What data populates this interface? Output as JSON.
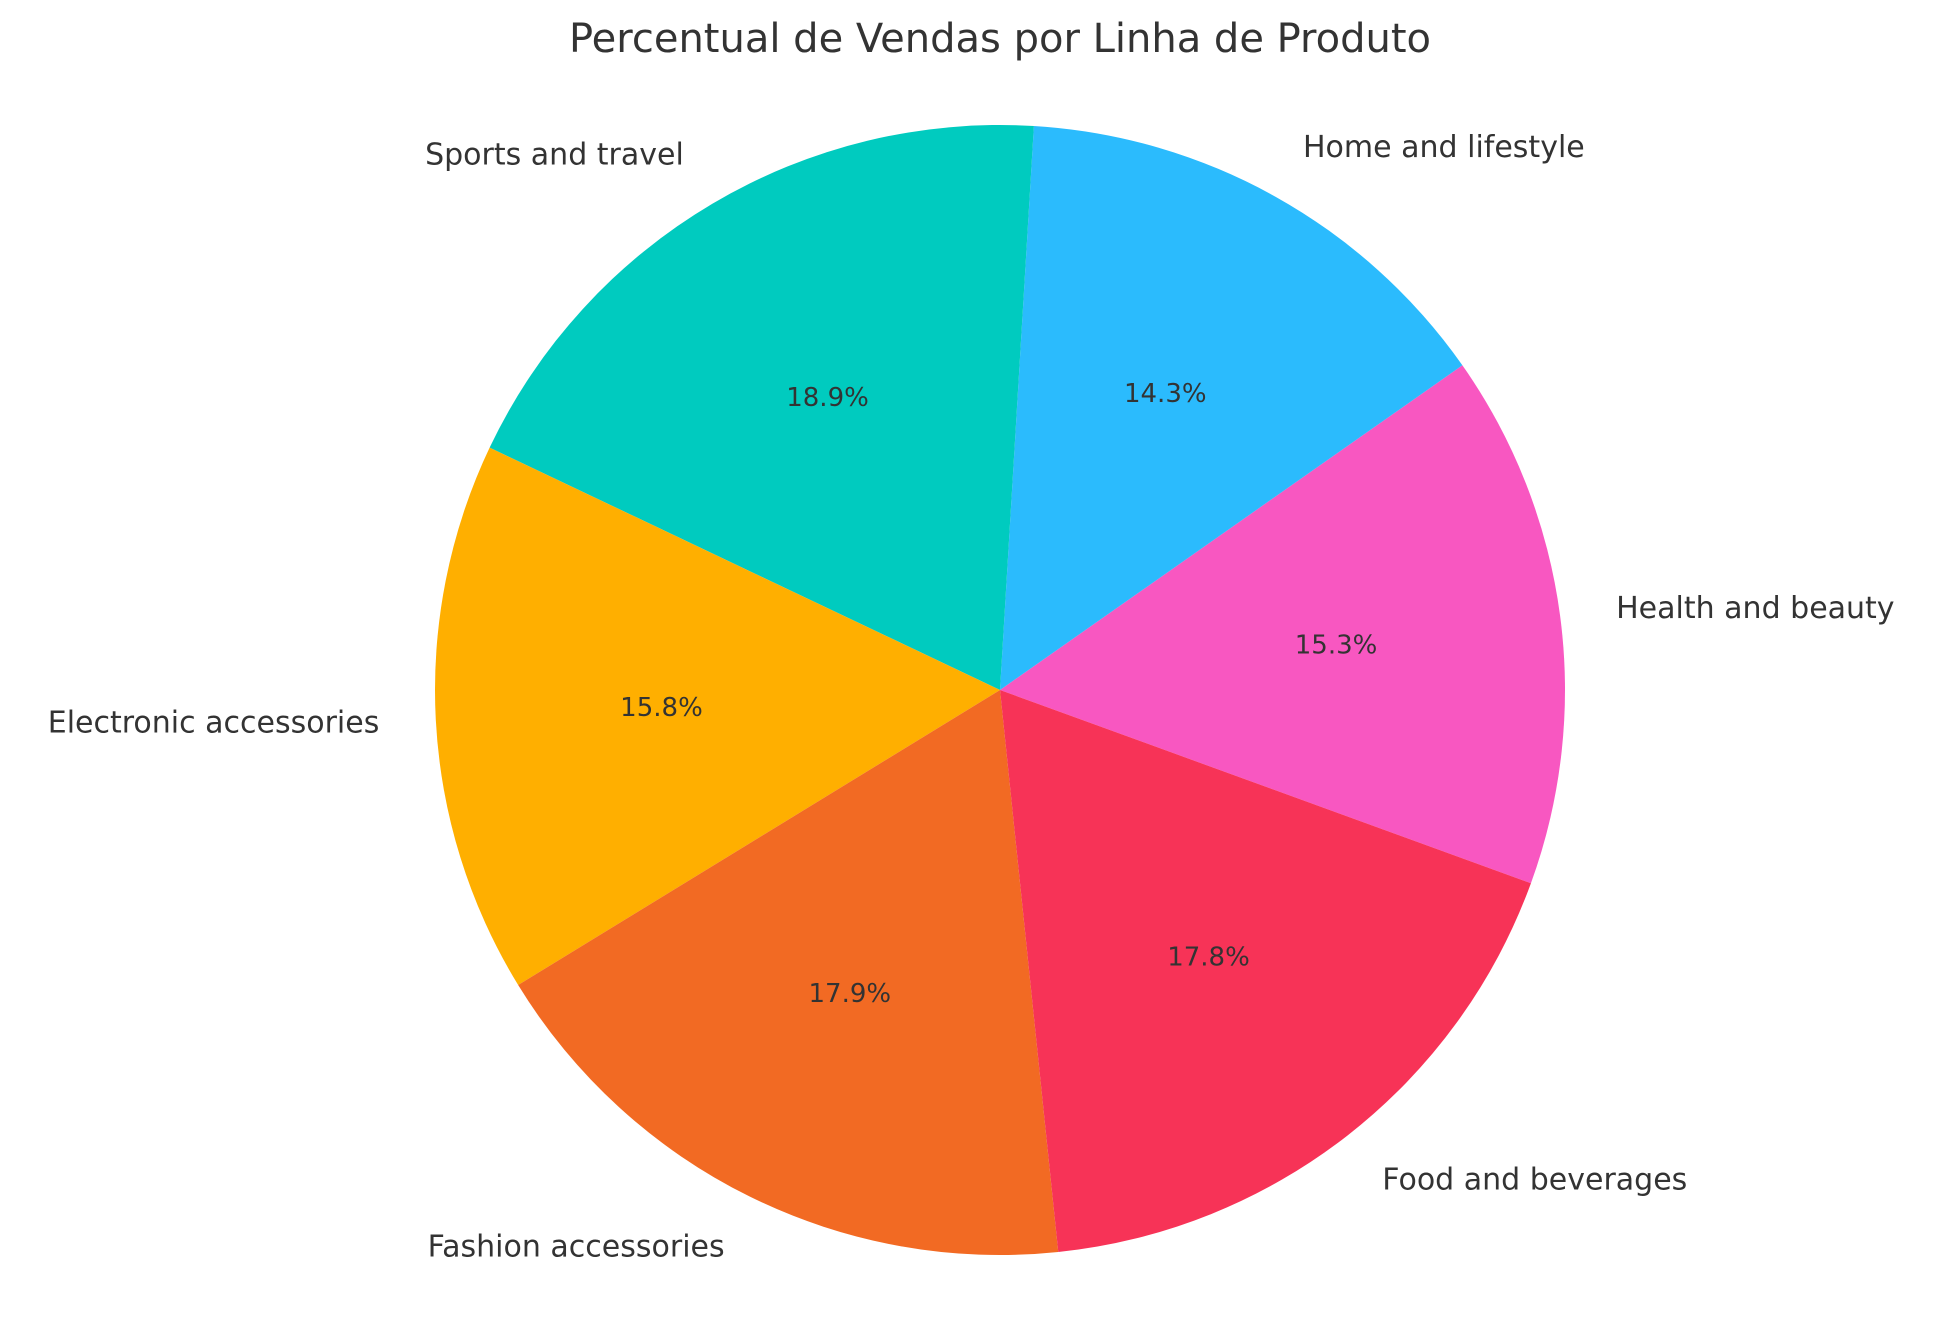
{
  "chart_data": {
    "type": "pie",
    "title": "Percentual de Vendas por Linha de Produto",
    "slices": [
      {
        "label": "Health and beauty",
        "value": 15.3,
        "pct_label": "15.3%",
        "color": "#F857C1"
      },
      {
        "label": "Home and lifestyle",
        "value": 14.3,
        "pct_label": "14.3%",
        "color": "#2BBBFD"
      },
      {
        "label": "Sports and travel",
        "value": 18.9,
        "pct_label": "18.9%",
        "color": "#00CBBF"
      },
      {
        "label": "Electronic accessories",
        "value": 15.8,
        "pct_label": "15.8%",
        "color": "#FFAF00"
      },
      {
        "label": "Fashion accessories",
        "value": 17.9,
        "pct_label": "17.9%",
        "color": "#F26A23"
      },
      {
        "label": "Food and beverages",
        "value": 17.8,
        "pct_label": "17.8%",
        "color": "#F73357"
      }
    ],
    "start_angle_deg": -20,
    "direction": "counterclockwise",
    "legend": "none"
  }
}
